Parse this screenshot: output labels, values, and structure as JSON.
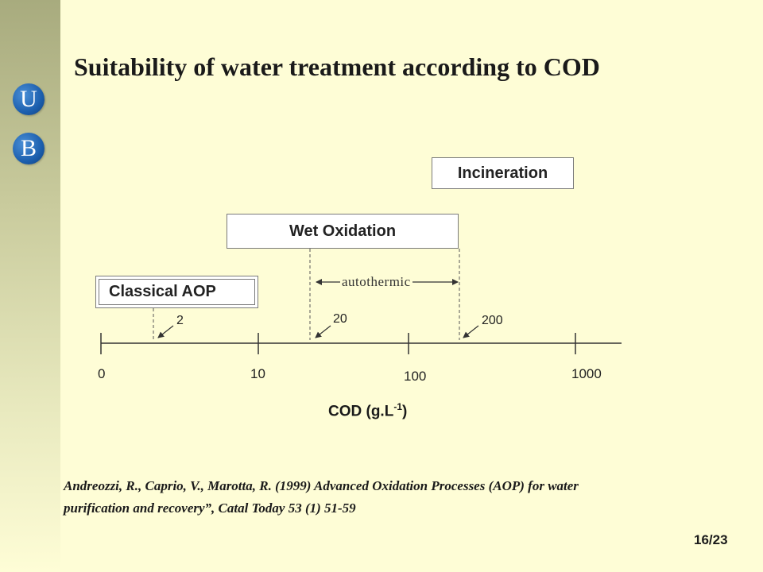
{
  "slide": {
    "title": "Suitability of water treatment according to COD",
    "page_number": "16/23"
  },
  "logo": {
    "letter_top": "U",
    "letter_bottom": "B"
  },
  "methods": {
    "incineration": "Incineration",
    "wet_oxidation": "Wet Oxidation",
    "classical_aop": "Classical AOP"
  },
  "axis": {
    "label_main": "COD (g.L",
    "label_sup": "-1",
    "label_close": ")",
    "ticks": [
      "0",
      "10",
      "100",
      "1000"
    ],
    "markers": [
      "2",
      "20",
      "200"
    ]
  },
  "autothermic_label": "autothermic",
  "citation": {
    "line1": "Andreozzi, R., Caprio, V., Marotta, R. (1999) Advanced Oxidation Processes (AOP) for water",
    "line2": "purification and recovery”,  Catal Today 53 (1) 51-59"
  },
  "colors": {
    "background": "#fefdd6",
    "logo_blue": "#1c5fae",
    "box_border": "#7a7a7a"
  }
}
